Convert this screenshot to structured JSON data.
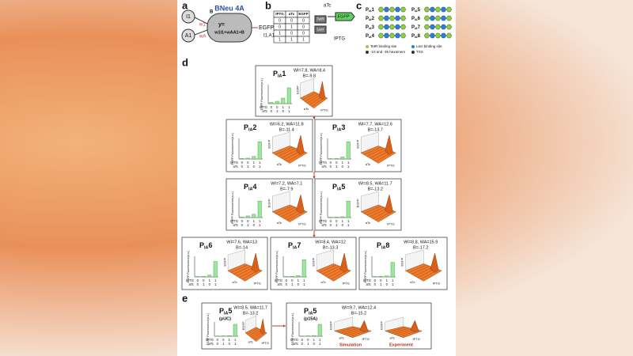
{
  "panels": {
    "a": "a",
    "b": "b",
    "c": "c",
    "d": "d",
    "e": "e"
  },
  "neuron": {
    "title": "BNeu 4A",
    "input1": "I1",
    "input2": "A1",
    "w1": "w1",
    "w2": "wA",
    "bias": "B",
    "y": "y=",
    "formula": "w1I1+wAA1+B",
    "output": "EGFP=",
    "output_args": "I1,A1"
  },
  "truth_table": {
    "headers": [
      "IPTG",
      "aTc",
      "EGFP"
    ],
    "rows": [
      [
        "0",
        "0",
        "0"
      ],
      [
        "0",
        "1",
        "0"
      ],
      [
        "1",
        "0",
        "0"
      ],
      [
        "1",
        "1",
        "1"
      ]
    ]
  },
  "circuit": {
    "atc": "aTc",
    "iptg": "IPTG",
    "egfp": "EGFP",
    "tetr": "TetR",
    "laci": "LacI"
  },
  "promoters": [
    {
      "p": "P",
      "sub": "IA",
      "n": "1"
    },
    {
      "p": "P",
      "sub": "IA",
      "n": "2"
    },
    {
      "p": "P",
      "sub": "IA",
      "n": "3"
    },
    {
      "p": "P",
      "sub": "IA",
      "n": "4"
    },
    {
      "p": "P",
      "sub": "IA",
      "n": "5"
    },
    {
      "p": "P",
      "sub": "IA",
      "n": "6"
    },
    {
      "p": "P",
      "sub": "IA",
      "n": "7"
    },
    {
      "p": "P",
      "sub": "IA",
      "n": "8"
    }
  ],
  "legend": [
    "TetR binding site",
    "LacI binding site",
    "-10 and -35 hexamers",
    "TSS"
  ],
  "axis": {
    "y_label": "EGFP Fluorescence(a.u.)",
    "z_label": "EGFP",
    "iptg": "IPTG",
    "atc": "aTc",
    "iptg_states": [
      "0",
      "0",
      "1",
      "1"
    ],
    "atc_states": [
      "0",
      "1",
      "0",
      "1"
    ],
    "ylim": [
      0,
      1.2
    ]
  },
  "tiles": [
    {
      "p": "P",
      "sub": "IA",
      "n": "1",
      "w": "WI=7.8, WA=8.4",
      "b": "B=-9.8",
      "bars": [
        0.08,
        0.15,
        0.35,
        1.0
      ]
    },
    {
      "p": "P",
      "sub": "IA",
      "n": "2",
      "w": "WI=6.2, WA=11.8",
      "b": "B=-11.4",
      "bars": [
        0.03,
        0.05,
        0.15,
        1.0
      ]
    },
    {
      "p": "P",
      "sub": "IA",
      "n": "3",
      "w": "WI=7.7, WA=12.6",
      "b": "B=-13.7",
      "bars": [
        0.02,
        0.04,
        0.12,
        1.0
      ]
    },
    {
      "p": "P",
      "sub": "IA",
      "n": "4",
      "w": "WI=7.2, WA=7.1",
      "b": "B=-7.9",
      "bars": [
        0.03,
        0.1,
        0.2,
        1.0
      ]
    },
    {
      "p": "P",
      "sub": "IA",
      "n": "5",
      "w": "WI=8.5, WA=11.7",
      "b": "B=-13.2",
      "bars": [
        0.02,
        0.03,
        0.05,
        1.0
      ]
    },
    {
      "p": "P",
      "sub": "IA",
      "n": "6",
      "w": "WI=7.6, WA=13",
      "b": "B=-14",
      "bars": [
        0.02,
        0.03,
        0.1,
        0.9
      ]
    },
    {
      "p": "P",
      "sub": "IA",
      "n": "7",
      "w": "WI=8.4, WA=12",
      "b": "B=-13.3",
      "bars": [
        0.02,
        0.04,
        0.08,
        1.0
      ]
    },
    {
      "p": "P",
      "sub": "IA",
      "n": "8",
      "w": "WI=8.8, WA=15.9",
      "b": "B=-17.2",
      "bars": [
        0.02,
        0.03,
        0.06,
        0.85
      ]
    }
  ],
  "tiles_e": [
    {
      "p": "P",
      "sub": "IA",
      "n": "5",
      "note": "(pUC)",
      "w": "WI=8.5, WA=11.7",
      "b": "B=-13.2",
      "bars": [
        0.02,
        0.03,
        0.05,
        1.0
      ]
    },
    {
      "p": "P",
      "sub": "IA",
      "n": "5",
      "note": "(p15A)",
      "w": "WI=9.7, WA=12.4",
      "b": "B=-15.2",
      "bars": [
        0.02,
        0.03,
        0.06,
        1.0
      ],
      "labels": [
        "Simulation",
        "Experiment"
      ]
    }
  ]
}
